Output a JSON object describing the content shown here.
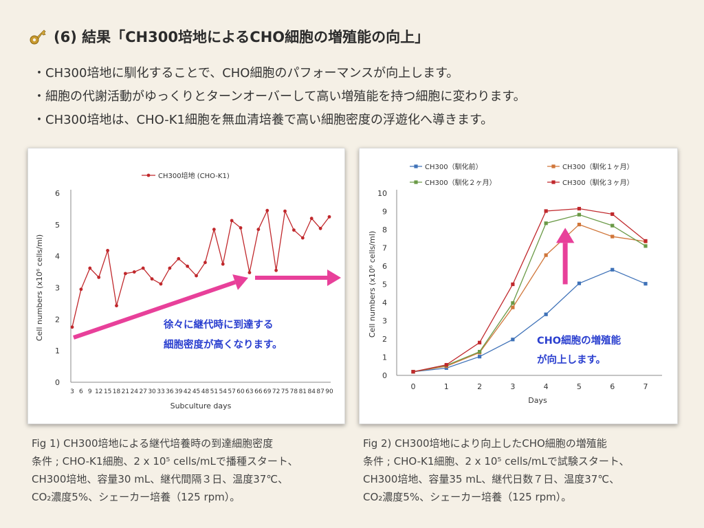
{
  "title": "(6) 結果「CH300培地によるCHO細胞の増殖能の向上」",
  "key_icon": "key-icon",
  "bullets": [
    "・CH300培地に馴化することで、CHO細胞のパフォーマンスが向上します。",
    "・細胞の代謝活動がゆっくりとターンオーバーして高い増殖能を持つ細胞に変わります。",
    "・CH300培地は、CHO-K1細胞を無血清培養で高い細胞密度の浮遊化へ導きます。"
  ],
  "colors": {
    "series_red": "#c0282c",
    "series_blue": "#3f72b8",
    "series_orange": "#d0763a",
    "series_green": "#6a9a47",
    "arrow_pink": "#e8409a",
    "annotation_blue": "#2a3fcf"
  },
  "chart_data": [
    {
      "type": "line",
      "legend": [
        "CH300培地 (CHO-K1)"
      ],
      "xlabel": "Subculture days",
      "ylabel": "Cell numbers (x10⁶ cells/ml)",
      "ylim": [
        0,
        6
      ],
      "yticks": [
        "0",
        "1",
        "2",
        "3",
        "4",
        "5",
        "6"
      ],
      "x": [
        "3",
        "6",
        "9",
        "12",
        "15",
        "18",
        "21",
        "24",
        "27",
        "30",
        "33",
        "36",
        "39",
        "42",
        "45",
        "48",
        "51",
        "54",
        "57",
        "60",
        "63",
        "66",
        "69",
        "72",
        "75",
        "78",
        "81",
        "84",
        "87",
        "90"
      ],
      "series": [
        {
          "name": "CH300培地 (CHO-K1)",
          "values": [
            1.75,
            2.95,
            3.62,
            3.33,
            4.18,
            2.43,
            3.45,
            3.5,
            3.62,
            3.28,
            3.12,
            3.62,
            3.92,
            3.68,
            3.38,
            3.8,
            4.85,
            3.75,
            5.13,
            4.9,
            3.48,
            4.85,
            5.45,
            3.55,
            5.43,
            4.83,
            4.58,
            5.2,
            4.88,
            5.25
          ]
        }
      ],
      "annotation": [
        "徐々に継代時に到達する",
        "細胞密度が高くなります。"
      ]
    },
    {
      "type": "line",
      "xlabel": "Days",
      "ylabel": "Cell numbers (x10⁶ cells/ml)",
      "ylim": [
        0,
        10
      ],
      "yticks": [
        "0",
        "1",
        "2",
        "3",
        "4",
        "5",
        "6",
        "7",
        "8",
        "9",
        "10"
      ],
      "x": [
        "0",
        "1",
        "2",
        "3",
        "4",
        "5",
        "6",
        "7"
      ],
      "series": [
        {
          "name": "CH300（馴化前）",
          "values": [
            0.2,
            0.4,
            1.03,
            1.97,
            3.35,
            5.05,
            5.8,
            5.03
          ]
        },
        {
          "name": "CH300（馴化１ヶ月）",
          "values": [
            0.2,
            0.5,
            1.25,
            3.73,
            6.6,
            8.28,
            7.62,
            7.35
          ]
        },
        {
          "name": "CH300（馴化２ヶ月）",
          "values": [
            0.2,
            0.55,
            1.3,
            3.97,
            8.35,
            8.82,
            8.22,
            7.1
          ]
        },
        {
          "name": "CH300（馴化３ヶ月）",
          "values": [
            0.2,
            0.58,
            1.8,
            5.0,
            9.02,
            9.15,
            8.85,
            7.38
          ]
        }
      ],
      "annotation": [
        "CHO細胞の増殖能",
        "が向上します。"
      ]
    }
  ],
  "captions": {
    "fig1": [
      "Fig 1) CH300培地による継代培養時の到達細胞密度",
      "条件 ; CHO-K1細胞、2 x 10⁵ cells/mLで播種スタート、",
      "CH300培地、容量30 mL、継代間隔３日、温度37℃、",
      "CO₂濃度5%、シェーカー培養（125 rpm）。"
    ],
    "fig2": [
      "Fig 2) CH300培地により向上したCHO細胞の増殖能",
      "条件 ; CHO-K1細胞、2 x 10⁵ cells/mLで試験スタート、",
      "CH300培地、容量35 mL、継代日数７日、温度37℃、",
      "CO₂濃度5%、シェーカー培養（125 rpm）。"
    ]
  }
}
